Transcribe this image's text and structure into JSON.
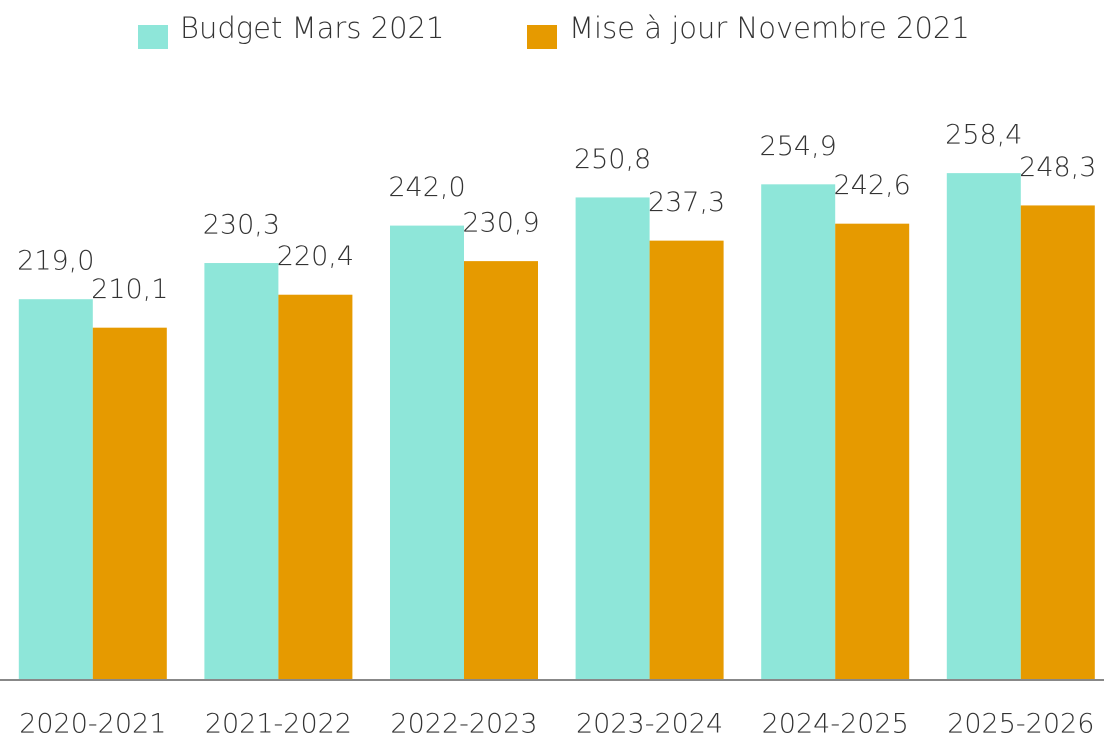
{
  "chart_data": {
    "type": "bar",
    "categories": [
      "2020-2021",
      "2021-2022",
      "2022-2023",
      "2023-2024",
      "2024-2025",
      "2025-2026"
    ],
    "series": [
      {
        "name": "Budget Mars 2021",
        "color": "#8ee6d9",
        "values": [
          219.0,
          230.3,
          242.0,
          250.8,
          254.9,
          258.4
        ],
        "value_labels": [
          "219,0",
          "230,3",
          "242,0",
          "250,8",
          "254,9",
          "258,4"
        ]
      },
      {
        "name": "Mise à jour Novembre 2021",
        "color": "#e69a00",
        "values": [
          210.1,
          220.4,
          230.9,
          237.3,
          242.6,
          248.3
        ],
        "value_labels": [
          "210,1",
          "220,4",
          "230,9",
          "237,3",
          "242,6",
          "248,3"
        ]
      }
    ],
    "ylim": [
      100,
      280
    ],
    "legend": "top"
  }
}
